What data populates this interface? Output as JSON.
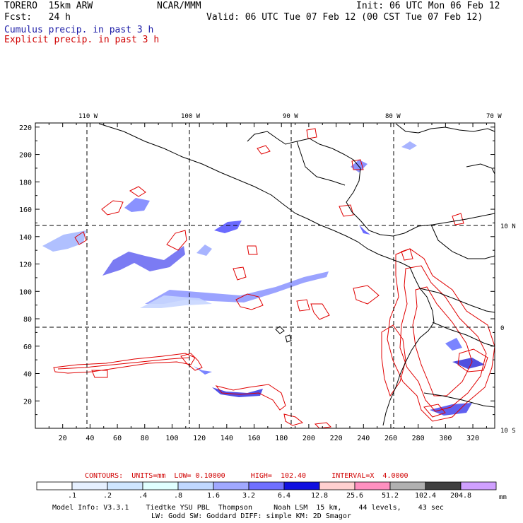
{
  "header": {
    "model": "TORERO  15km ARW",
    "org": "NCAR/MMM",
    "init": "Init: 06 UTC Mon 06 Feb 12",
    "fcst": "Fcst:   24 h",
    "valid": "Valid: 06 UTC Tue 07 Feb 12 (00 CST Tue 07 Feb 12)"
  },
  "legend": {
    "cumulus": "Cumulus precip. in past 3 h",
    "cumulus_color": "#1a1aa6",
    "explicit": "Explicit precip. in past 3 h",
    "explicit_color": "#d00000"
  },
  "map": {
    "lon_labels": [
      "110 W",
      "100 W",
      "90 W",
      "80 W",
      "70 W"
    ],
    "lat_labels": [
      "10 N",
      "0",
      "10 S"
    ],
    "x_ticks": [
      "20",
      "40",
      "60",
      "80",
      "100",
      "120",
      "140",
      "160",
      "180",
      "200",
      "220",
      "240",
      "260",
      "280",
      "300",
      "320"
    ],
    "y_ticks": [
      "20",
      "40",
      "60",
      "80",
      "100",
      "120",
      "140",
      "160",
      "180",
      "200",
      "220"
    ]
  },
  "contours": "CONTOURS:  UNITS=mm  LOW= 0.10000      HIGH=  102.40      INTERVAL=X  4.0000",
  "colorbar": {
    "labels": [
      ".1",
      ".2",
      ".4",
      ".8",
      "1.6",
      "3.2",
      "6.4",
      "12.8",
      "25.6",
      "51.2",
      "102.4",
      "204.8"
    ],
    "unit": "mm",
    "colors": [
      "#ffffff",
      "#e6f0ff",
      "#cfe6ff",
      "#e0ffff",
      "#c0d8ff",
      "#a0a8ff",
      "#6f6fff",
      "#1010e0",
      "#ffd0d0",
      "#ff90c0",
      "#b0b0b0",
      "#404040",
      "#d0a0ff"
    ]
  },
  "footer": {
    "line1": "Model Info: V3.3.1    Tiedtke YSU PBL  Thompson     Noah LSM  15 km,    44 levels,    43 sec",
    "line2": "LW: Godd SW: Goddard DIFF: simple KM: 2D Smagor"
  }
}
